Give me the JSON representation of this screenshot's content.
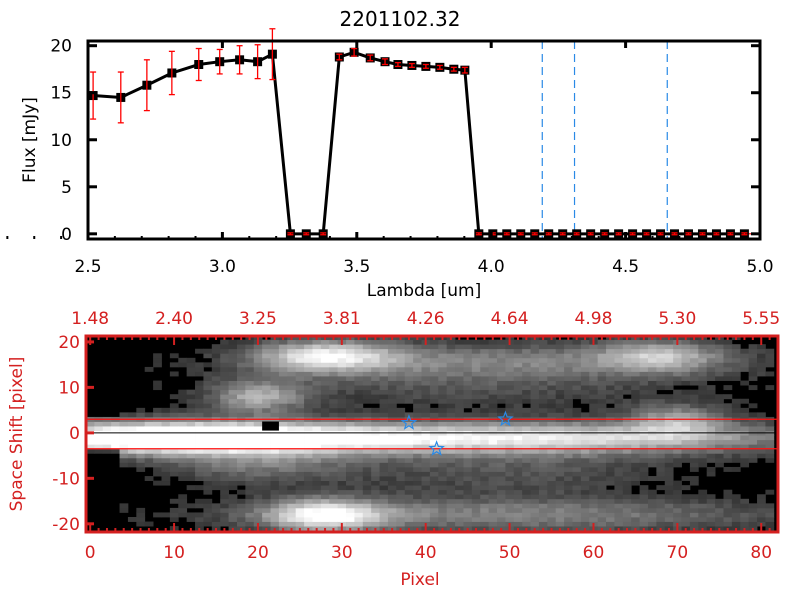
{
  "chart_data": [
    {
      "type": "line",
      "title": "2201102.32",
      "xlabel": "Lambda [um]",
      "ylabel": "Flux [mJy]",
      "xlim": [
        2.5,
        5.0
      ],
      "ylim": [
        -0.55,
        20.5
      ],
      "xticks": [
        "2.5",
        "3.0",
        "3.5",
        "4.0",
        "4.5",
        "5.0"
      ],
      "xtick_values": [
        2.5,
        3.0,
        3.5,
        4.0,
        4.5,
        5.0
      ],
      "yticks": [
        "0",
        "5",
        "10",
        "15",
        "20"
      ],
      "ytick_values": [
        0,
        5,
        10,
        15,
        20
      ],
      "series": [
        {
          "name": "flux",
          "x": [
            2.519,
            2.622,
            2.719,
            2.812,
            2.912,
            2.99,
            3.064,
            3.131,
            3.186,
            3.253,
            3.312,
            3.375,
            3.435,
            3.49,
            3.55,
            3.605,
            3.653,
            3.705,
            3.757,
            3.809,
            3.861,
            3.902,
            3.954,
            4.006,
            4.058,
            4.11,
            4.162,
            4.214,
            4.266,
            4.318,
            4.37,
            4.422,
            4.474,
            4.526,
            4.578,
            4.63,
            4.682,
            4.734,
            4.786,
            4.838,
            4.89,
            4.942
          ],
          "values": [
            14.7,
            14.5,
            15.8,
            17.1,
            18.0,
            18.3,
            18.5,
            18.3,
            19.1,
            0,
            0,
            0,
            18.8,
            19.3,
            18.7,
            18.3,
            18.0,
            17.9,
            17.8,
            17.7,
            17.5,
            17.4,
            0,
            0,
            0,
            0,
            0,
            0,
            0,
            0,
            0,
            0,
            0,
            0,
            0,
            0,
            0,
            0,
            0,
            0,
            0,
            0
          ],
          "errors": [
            2.5,
            2.7,
            2.7,
            2.3,
            1.7,
            1.3,
            1.5,
            1.8,
            2.7,
            0.1,
            0.1,
            0.1,
            0.3,
            0.4,
            0.3,
            0.3,
            0.2,
            0.2,
            0.2,
            0.2,
            0.2,
            0.3,
            0.1,
            0.1,
            0.1,
            0.1,
            0.1,
            0.1,
            0.1,
            0.1,
            0.1,
            0.1,
            0.1,
            0.1,
            0.1,
            0.1,
            0.1,
            0.1,
            0.1,
            0.1,
            0.1,
            0.1
          ],
          "line_color": "#000000",
          "error_color": "#ff0000"
        }
      ],
      "vertical_lines": [
        4.19,
        4.31,
        4.655
      ],
      "vertical_line_color": "#2a8ae6",
      "zero_line_color": "#ff0000"
    },
    {
      "type": "heatmap",
      "xlabel": "Pixel",
      "ylabel": "Space Shift [pixel]",
      "xlim": [
        -0.5,
        82
      ],
      "ylim": [
        -21.8,
        21.3
      ],
      "xticks": [
        "0",
        "10",
        "20",
        "30",
        "40",
        "50",
        "60",
        "70",
        "80"
      ],
      "xtick_values": [
        0,
        10,
        20,
        30,
        40,
        50,
        60,
        70,
        80
      ],
      "top_xticks": [
        "1.48",
        "2.40",
        "3.25",
        "3.81",
        "4.26",
        "4.64",
        "4.98",
        "5.30",
        "5.55"
      ],
      "yticks": [
        "20",
        "10",
        "0",
        "-10",
        "-20"
      ],
      "ytick_values": [
        20,
        10,
        0,
        -10,
        -20
      ],
      "stars": [
        {
          "x": 38,
          "y": 2.2
        },
        {
          "x": 49.5,
          "y": 3.0
        },
        {
          "x": 41.3,
          "y": -3.5
        }
      ],
      "hlines_red": [
        3.0,
        -3.5
      ],
      "hline_black": 0,
      "axis_color": "#d42020",
      "star_color": "#2a8ae6"
    }
  ]
}
